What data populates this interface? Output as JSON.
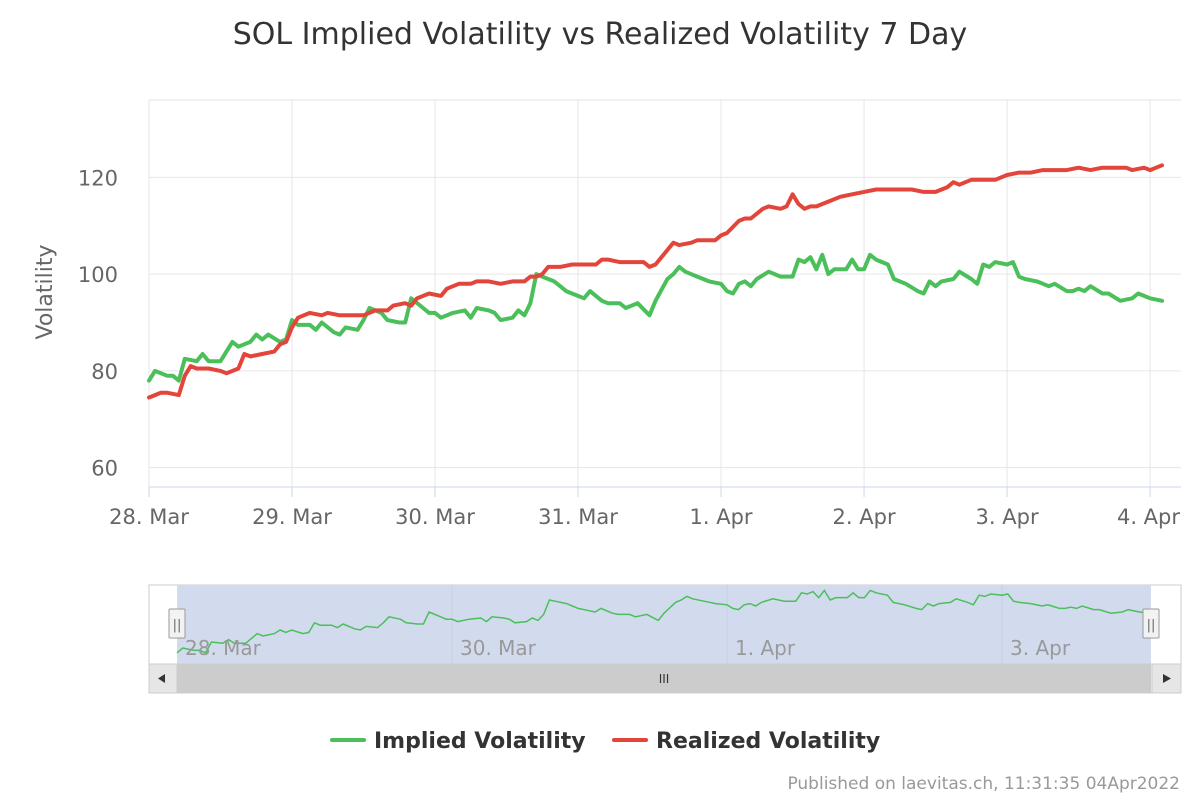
{
  "chart_data": {
    "type": "line",
    "title": "SOL Implied Volatility vs Realized Volatility 7 Day",
    "ylabel": "Volatility",
    "xlabel": "",
    "ylim": [
      56,
      136
    ],
    "yticks": [
      60,
      80,
      100,
      120
    ],
    "xlim": [
      "2022-03-28T00:00",
      "2022-04-04T02:00"
    ],
    "xticks": [
      {
        "date": "2022-03-28T00:00",
        "label": "28. Mar"
      },
      {
        "date": "2022-03-29T00:00",
        "label": "29. Mar"
      },
      {
        "date": "2022-03-30T00:00",
        "label": "30. Mar"
      },
      {
        "date": "2022-03-31T00:00",
        "label": "31. Mar"
      },
      {
        "date": "2022-04-01T00:00",
        "label": "1. Apr"
      },
      {
        "date": "2022-04-02T00:00",
        "label": "2. Apr"
      },
      {
        "date": "2022-04-03T00:00",
        "label": "3. Apr"
      },
      {
        "date": "2022-04-04T00:00",
        "label": "4. Apr"
      }
    ],
    "grid": true,
    "legend_position": "bottom-center",
    "series": [
      {
        "name": "Implied Volatility",
        "color": "#4bbf5a",
        "points": [
          [
            "2022-03-28T00:00",
            78
          ],
          [
            "2022-03-28T01:00",
            80
          ],
          [
            "2022-03-28T03:00",
            79
          ],
          [
            "2022-03-28T04:00",
            79
          ],
          [
            "2022-03-28T05:00",
            78
          ],
          [
            "2022-03-28T06:00",
            82.5
          ],
          [
            "2022-03-28T08:00",
            82
          ],
          [
            "2022-03-28T09:00",
            83.5
          ],
          [
            "2022-03-28T10:00",
            82
          ],
          [
            "2022-03-28T12:00",
            82
          ],
          [
            "2022-03-28T14:00",
            86
          ],
          [
            "2022-03-28T15:00",
            85
          ],
          [
            "2022-03-28T17:00",
            86
          ],
          [
            "2022-03-28T18:00",
            87.5
          ],
          [
            "2022-03-28T19:00",
            86.5
          ],
          [
            "2022-03-28T20:00",
            87.5
          ],
          [
            "2022-03-28T22:00",
            86
          ],
          [
            "2022-03-28T23:00",
            86.5
          ],
          [
            "2022-03-29T00:00",
            90.5
          ],
          [
            "2022-03-29T01:00",
            89.5
          ],
          [
            "2022-03-29T03:00",
            89.5
          ],
          [
            "2022-03-29T04:00",
            88.5
          ],
          [
            "2022-03-29T05:00",
            90
          ],
          [
            "2022-03-29T07:00",
            88
          ],
          [
            "2022-03-29T08:00",
            87.5
          ],
          [
            "2022-03-29T09:00",
            89
          ],
          [
            "2022-03-29T11:00",
            88.5
          ],
          [
            "2022-03-29T12:00",
            90.5
          ],
          [
            "2022-03-29T13:00",
            93
          ],
          [
            "2022-03-29T15:00",
            92
          ],
          [
            "2022-03-29T16:00",
            90.5
          ],
          [
            "2022-03-29T18:00",
            90
          ],
          [
            "2022-03-29T19:00",
            90
          ],
          [
            "2022-03-29T20:00",
            95
          ],
          [
            "2022-03-29T22:00",
            93
          ],
          [
            "2022-03-29T23:00",
            92
          ],
          [
            "2022-03-30T00:00",
            92
          ],
          [
            "2022-03-30T01:00",
            91
          ],
          [
            "2022-03-30T03:00",
            92
          ],
          [
            "2022-03-30T05:00",
            92.5
          ],
          [
            "2022-03-30T06:00",
            91
          ],
          [
            "2022-03-30T07:00",
            93
          ],
          [
            "2022-03-30T09:00",
            92.5
          ],
          [
            "2022-03-30T10:00",
            92
          ],
          [
            "2022-03-30T11:00",
            90.5
          ],
          [
            "2022-03-30T13:00",
            91
          ],
          [
            "2022-03-30T14:00",
            92.5
          ],
          [
            "2022-03-30T15:00",
            91.5
          ],
          [
            "2022-03-30T16:00",
            94
          ],
          [
            "2022-03-30T17:00",
            100
          ],
          [
            "2022-03-30T18:00",
            99.5
          ],
          [
            "2022-03-30T20:00",
            98.5
          ],
          [
            "2022-03-30T21:00",
            97.5
          ],
          [
            "2022-03-30T22:00",
            96.5
          ],
          [
            "2022-03-31T00:00",
            95.5
          ],
          [
            "2022-03-31T01:00",
            95
          ],
          [
            "2022-03-31T02:00",
            96.5
          ],
          [
            "2022-03-31T04:00",
            94.5
          ],
          [
            "2022-03-31T05:00",
            94
          ],
          [
            "2022-03-31T07:00",
            94
          ],
          [
            "2022-03-31T08:00",
            93
          ],
          [
            "2022-03-31T10:00",
            94
          ],
          [
            "2022-03-31T12:00",
            91.5
          ],
          [
            "2022-03-31T13:00",
            94.5
          ],
          [
            "2022-03-31T15:00",
            99
          ],
          [
            "2022-03-31T16:00",
            100
          ],
          [
            "2022-03-31T17:00",
            101.5
          ],
          [
            "2022-03-31T18:00",
            100.5
          ],
          [
            "2022-03-31T20:00",
            99.5
          ],
          [
            "2022-03-31T22:00",
            98.5
          ],
          [
            "2022-04-01T00:00",
            98
          ],
          [
            "2022-04-01T01:00",
            96.5
          ],
          [
            "2022-04-01T02:00",
            96
          ],
          [
            "2022-04-01T03:00",
            98
          ],
          [
            "2022-04-01T04:00",
            98.5
          ],
          [
            "2022-04-01T05:00",
            97.5
          ],
          [
            "2022-04-01T06:00",
            99
          ],
          [
            "2022-04-01T08:00",
            100.5
          ],
          [
            "2022-04-01T10:00",
            99.5
          ],
          [
            "2022-04-01T12:00",
            99.5
          ],
          [
            "2022-04-01T13:00",
            103
          ],
          [
            "2022-04-01T14:00",
            102.5
          ],
          [
            "2022-04-01T15:00",
            103.5
          ],
          [
            "2022-04-01T16:00",
            101
          ],
          [
            "2022-04-01T17:00",
            104
          ],
          [
            "2022-04-01T18:00",
            100
          ],
          [
            "2022-04-01T19:00",
            101
          ],
          [
            "2022-04-01T21:00",
            101
          ],
          [
            "2022-04-01T22:00",
            103
          ],
          [
            "2022-04-01T23:00",
            101
          ],
          [
            "2022-04-02T00:00",
            101
          ],
          [
            "2022-04-02T01:00",
            104
          ],
          [
            "2022-04-02T02:00",
            103
          ],
          [
            "2022-04-02T04:00",
            102
          ],
          [
            "2022-04-02T05:00",
            99
          ],
          [
            "2022-04-02T07:00",
            98
          ],
          [
            "2022-04-02T09:00",
            96.5
          ],
          [
            "2022-04-02T10:00",
            96
          ],
          [
            "2022-04-02T11:00",
            98.5
          ],
          [
            "2022-04-02T12:00",
            97.5
          ],
          [
            "2022-04-02T13:00",
            98.5
          ],
          [
            "2022-04-02T15:00",
            99
          ],
          [
            "2022-04-02T16:00",
            100.5
          ],
          [
            "2022-04-02T18:00",
            99
          ],
          [
            "2022-04-02T19:00",
            98
          ],
          [
            "2022-04-02T20:00",
            102
          ],
          [
            "2022-04-02T21:00",
            101.5
          ],
          [
            "2022-04-02T22:00",
            102.5
          ],
          [
            "2022-04-03T00:00",
            102
          ],
          [
            "2022-04-03T01:00",
            102.5
          ],
          [
            "2022-04-03T02:00",
            99.5
          ],
          [
            "2022-04-03T03:00",
            99
          ],
          [
            "2022-04-03T05:00",
            98.5
          ],
          [
            "2022-04-03T07:00",
            97.5
          ],
          [
            "2022-04-03T08:00",
            98
          ],
          [
            "2022-04-03T10:00",
            96.5
          ],
          [
            "2022-04-03T11:00",
            96.5
          ],
          [
            "2022-04-03T12:00",
            97
          ],
          [
            "2022-04-03T13:00",
            96.5
          ],
          [
            "2022-04-03T14:00",
            97.5
          ],
          [
            "2022-04-03T16:00",
            96
          ],
          [
            "2022-04-03T17:00",
            96
          ],
          [
            "2022-04-03T19:00",
            94.5
          ],
          [
            "2022-04-03T21:00",
            95
          ],
          [
            "2022-04-03T22:00",
            96
          ],
          [
            "2022-04-04T00:00",
            95
          ],
          [
            "2022-04-04T02:00",
            94.5
          ]
        ]
      },
      {
        "name": "Realized Volatility",
        "color": "#e4453a",
        "points": [
          [
            "2022-03-28T00:00",
            74.5
          ],
          [
            "2022-03-28T01:00",
            75
          ],
          [
            "2022-03-28T02:00",
            75.5
          ],
          [
            "2022-03-28T03:00",
            75.5
          ],
          [
            "2022-03-28T05:00",
            75
          ],
          [
            "2022-03-28T06:00",
            79
          ],
          [
            "2022-03-28T07:00",
            81
          ],
          [
            "2022-03-28T08:00",
            80.5
          ],
          [
            "2022-03-28T10:00",
            80.5
          ],
          [
            "2022-03-28T12:00",
            80
          ],
          [
            "2022-03-28T13:00",
            79.5
          ],
          [
            "2022-03-28T15:00",
            80.5
          ],
          [
            "2022-03-28T16:00",
            83.5
          ],
          [
            "2022-03-28T17:00",
            83
          ],
          [
            "2022-03-28T19:00",
            83.5
          ],
          [
            "2022-03-28T21:00",
            84
          ],
          [
            "2022-03-28T22:00",
            85.5
          ],
          [
            "2022-03-28T23:00",
            86
          ],
          [
            "2022-03-29T00:00",
            89
          ],
          [
            "2022-03-29T01:00",
            91
          ],
          [
            "2022-03-29T03:00",
            92
          ],
          [
            "2022-03-29T05:00",
            91.5
          ],
          [
            "2022-03-29T06:00",
            92
          ],
          [
            "2022-03-29T08:00",
            91.5
          ],
          [
            "2022-03-29T10:00",
            91.5
          ],
          [
            "2022-03-29T12:00",
            91.5
          ],
          [
            "2022-03-29T14:00",
            92.5
          ],
          [
            "2022-03-29T16:00",
            92.5
          ],
          [
            "2022-03-29T17:00",
            93.5
          ],
          [
            "2022-03-29T19:00",
            94
          ],
          [
            "2022-03-29T20:00",
            93.5
          ],
          [
            "2022-03-29T21:00",
            95
          ],
          [
            "2022-03-29T23:00",
            96
          ],
          [
            "2022-03-30T01:00",
            95.5
          ],
          [
            "2022-03-30T02:00",
            97
          ],
          [
            "2022-03-30T04:00",
            98
          ],
          [
            "2022-03-30T06:00",
            98
          ],
          [
            "2022-03-30T07:00",
            98.5
          ],
          [
            "2022-03-30T09:00",
            98.5
          ],
          [
            "2022-03-30T11:00",
            98
          ],
          [
            "2022-03-30T13:00",
            98.5
          ],
          [
            "2022-03-30T15:00",
            98.5
          ],
          [
            "2022-03-30T16:00",
            99.5
          ],
          [
            "2022-03-30T17:00",
            99.5
          ],
          [
            "2022-03-30T18:00",
            100
          ],
          [
            "2022-03-30T19:00",
            101.5
          ],
          [
            "2022-03-30T20:00",
            101.5
          ],
          [
            "2022-03-30T21:00",
            101.5
          ],
          [
            "2022-03-30T23:00",
            102
          ],
          [
            "2022-03-31T01:00",
            102
          ],
          [
            "2022-03-31T03:00",
            102
          ],
          [
            "2022-03-31T04:00",
            103
          ],
          [
            "2022-03-31T05:00",
            103
          ],
          [
            "2022-03-31T07:00",
            102.5
          ],
          [
            "2022-03-31T09:00",
            102.5
          ],
          [
            "2022-03-31T11:00",
            102.5
          ],
          [
            "2022-03-31T12:00",
            101.5
          ],
          [
            "2022-03-31T13:00",
            102
          ],
          [
            "2022-03-31T15:00",
            105
          ],
          [
            "2022-03-31T16:00",
            106.5
          ],
          [
            "2022-03-31T17:00",
            106
          ],
          [
            "2022-03-31T19:00",
            106.5
          ],
          [
            "2022-03-31T20:00",
            107
          ],
          [
            "2022-03-31T23:00",
            107
          ],
          [
            "2022-04-01T00:00",
            108
          ],
          [
            "2022-04-01T01:00",
            108.5
          ],
          [
            "2022-04-01T03:00",
            111
          ],
          [
            "2022-04-01T04:00",
            111.5
          ],
          [
            "2022-04-01T05:00",
            111.5
          ],
          [
            "2022-04-01T07:00",
            113.5
          ],
          [
            "2022-04-01T08:00",
            114
          ],
          [
            "2022-04-01T10:00",
            113.5
          ],
          [
            "2022-04-01T11:00",
            114
          ],
          [
            "2022-04-01T12:00",
            116.5
          ],
          [
            "2022-04-01T13:00",
            114.5
          ],
          [
            "2022-04-01T14:00",
            113.5
          ],
          [
            "2022-04-01T15:00",
            114
          ],
          [
            "2022-04-01T16:00",
            114
          ],
          [
            "2022-04-01T18:00",
            115
          ],
          [
            "2022-04-01T20:00",
            116
          ],
          [
            "2022-04-01T22:00",
            116.5
          ],
          [
            "2022-04-02T00:00",
            117
          ],
          [
            "2022-04-02T02:00",
            117.5
          ],
          [
            "2022-04-02T04:00",
            117.5
          ],
          [
            "2022-04-02T06:00",
            117.5
          ],
          [
            "2022-04-02T08:00",
            117.5
          ],
          [
            "2022-04-02T10:00",
            117
          ],
          [
            "2022-04-02T12:00",
            117
          ],
          [
            "2022-04-02T14:00",
            118
          ],
          [
            "2022-04-02T15:00",
            119
          ],
          [
            "2022-04-02T16:00",
            118.5
          ],
          [
            "2022-04-02T17:00",
            119
          ],
          [
            "2022-04-02T18:00",
            119.5
          ],
          [
            "2022-04-02T20:00",
            119.5
          ],
          [
            "2022-04-02T22:00",
            119.5
          ],
          [
            "2022-04-03T00:00",
            120.5
          ],
          [
            "2022-04-03T02:00",
            121
          ],
          [
            "2022-04-03T04:00",
            121
          ],
          [
            "2022-04-03T06:00",
            121.5
          ],
          [
            "2022-04-03T08:00",
            121.5
          ],
          [
            "2022-04-03T10:00",
            121.5
          ],
          [
            "2022-04-03T12:00",
            122
          ],
          [
            "2022-04-03T14:00",
            121.5
          ],
          [
            "2022-04-03T16:00",
            122
          ],
          [
            "2022-04-03T18:00",
            122
          ],
          [
            "2022-04-03T20:00",
            122
          ],
          [
            "2022-04-03T21:00",
            121.5
          ],
          [
            "2022-04-03T23:00",
            122
          ],
          [
            "2022-04-04T00:00",
            121.5
          ],
          [
            "2022-04-04T01:00",
            122
          ],
          [
            "2022-04-04T02:00",
            122.5
          ]
        ]
      }
    ]
  },
  "navigator": {
    "tick_labels": [
      {
        "date": "2022-03-28T00:00",
        "label": "28. Mar"
      },
      {
        "date": "2022-03-30T00:00",
        "label": "30. Mar"
      },
      {
        "date": "2022-04-01T00:00",
        "label": "1. Apr"
      },
      {
        "date": "2022-04-03T00:00",
        "label": "3. Apr"
      }
    ],
    "handle_glyph": "||",
    "scroll_thumb_glyph": "III",
    "scroll_left_icon": "arrow-left-icon",
    "scroll_right_icon": "arrow-right-icon",
    "mask_color": "#d2dbee"
  },
  "credit": "Published on laevitas.ch, 11:31:35 04Apr2022"
}
